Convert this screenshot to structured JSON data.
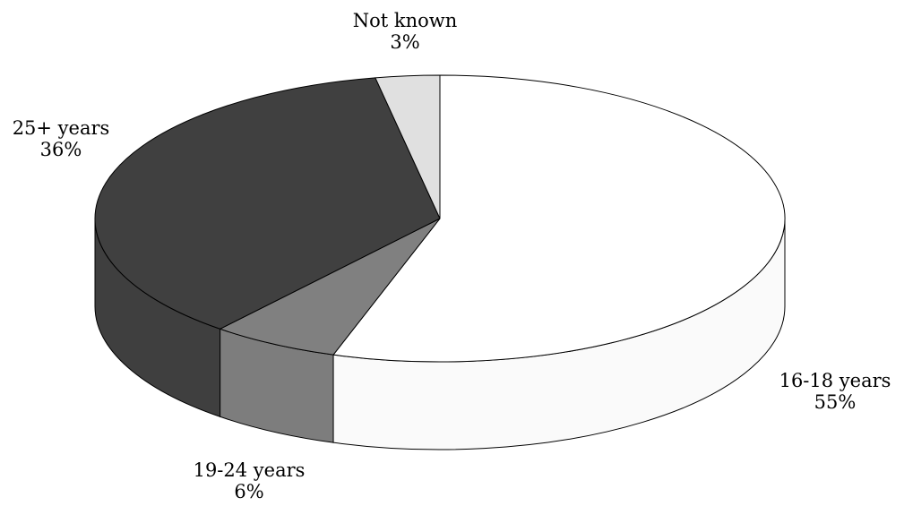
{
  "chart_data": {
    "type": "pie",
    "style": "3d",
    "title": "",
    "start_angle_deg": 0,
    "direction": "clockwise",
    "slices": [
      {
        "label": "16-18 years",
        "value": 55,
        "value_label": "55%",
        "color": "#ffffff"
      },
      {
        "label": "19-24 years",
        "value": 6,
        "value_label": "6%",
        "color": "#808080"
      },
      {
        "label": "25+ years",
        "value": 36,
        "value_label": "36%",
        "color": "#404040"
      },
      {
        "label": "Not known",
        "value": 3,
        "value_label": "3%",
        "color": "#e0e0e0"
      }
    ],
    "legend": "none"
  }
}
